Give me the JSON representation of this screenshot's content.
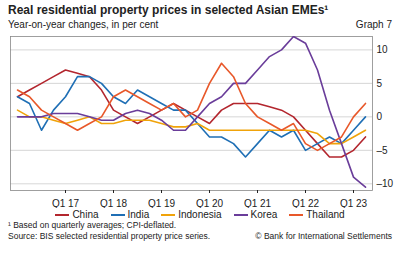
{
  "chart_data": {
    "type": "line",
    "title": "Real residential property prices in selected Asian EMEs¹",
    "subtitle": "Year-on-year changes, in per cent",
    "graph_label": "Graph 7",
    "footnote": "¹ Based on quarterly averages; CPI-deflated.",
    "source": "Source: BIS selected residential property price series.",
    "copyright": "© Bank for International Settlements",
    "categories": [
      null,
      null,
      null,
      null,
      "Q1 17",
      null,
      null,
      null,
      "Q1 18",
      null,
      null,
      null,
      "Q1 19",
      null,
      null,
      null,
      "Q1 20",
      null,
      null,
      null,
      "Q1 21",
      null,
      null,
      null,
      "Q1 22",
      null,
      null,
      null,
      "Q1 23",
      null
    ],
    "series": [
      {
        "name": "China",
        "color": "#b3262e",
        "values": [
          3,
          4,
          5,
          6,
          7,
          6.5,
          6,
          4,
          1,
          0,
          -1,
          0,
          1,
          2,
          1,
          0,
          -1,
          1,
          2,
          2,
          2,
          1.5,
          1,
          0,
          -2,
          -4,
          -6,
          -6,
          -5,
          -3
        ]
      },
      {
        "name": "India",
        "color": "#1f6fb5",
        "values": [
          3,
          2,
          -2,
          1,
          3,
          6,
          6,
          5,
          3,
          2,
          4,
          3,
          2,
          1,
          1,
          -1,
          -3,
          -3,
          -4,
          -6,
          -4,
          -2,
          -3,
          -2,
          -5,
          -4,
          -3,
          -4,
          -2,
          0
        ]
      },
      {
        "name": "Indonesia",
        "color": "#f0a30a",
        "values": [
          1,
          0,
          0,
          -0.5,
          -1,
          -0.5,
          0,
          -1,
          -1,
          -0.5,
          -0.5,
          -0.5,
          -1,
          -1.5,
          -1.5,
          -1,
          -2,
          -2,
          -2,
          -2,
          -2,
          -2,
          -2,
          -2,
          -2,
          -2.5,
          -4,
          -4,
          -3,
          -2
        ]
      },
      {
        "name": "Korea",
        "color": "#6a3d9a",
        "values": [
          0,
          0,
          0,
          0.5,
          0.5,
          0.5,
          0,
          -0.5,
          -0.5,
          0.5,
          1,
          0.5,
          -0.5,
          -2,
          -2,
          0,
          2,
          3,
          5,
          5,
          7,
          9,
          10,
          12,
          11,
          7,
          1,
          -4,
          -9,
          -10.5
        ]
      },
      {
        "name": "Thailand",
        "color": "#e8582a",
        "values": [
          4,
          3,
          1,
          0,
          -1,
          -2,
          -1,
          0,
          3,
          4,
          3,
          2,
          1,
          2,
          0,
          1,
          5,
          8,
          6,
          2,
          0,
          -1,
          -2,
          -1,
          -4,
          -5,
          -4,
          -3,
          0,
          2
        ]
      }
    ],
    "ylim": [
      -11,
      12
    ],
    "yticks": [
      {
        "value": -10,
        "label": "–10"
      },
      {
        "value": -5,
        "label": "–5"
      },
      0,
      5,
      10
    ],
    "grid": true,
    "legend": "bottom"
  }
}
